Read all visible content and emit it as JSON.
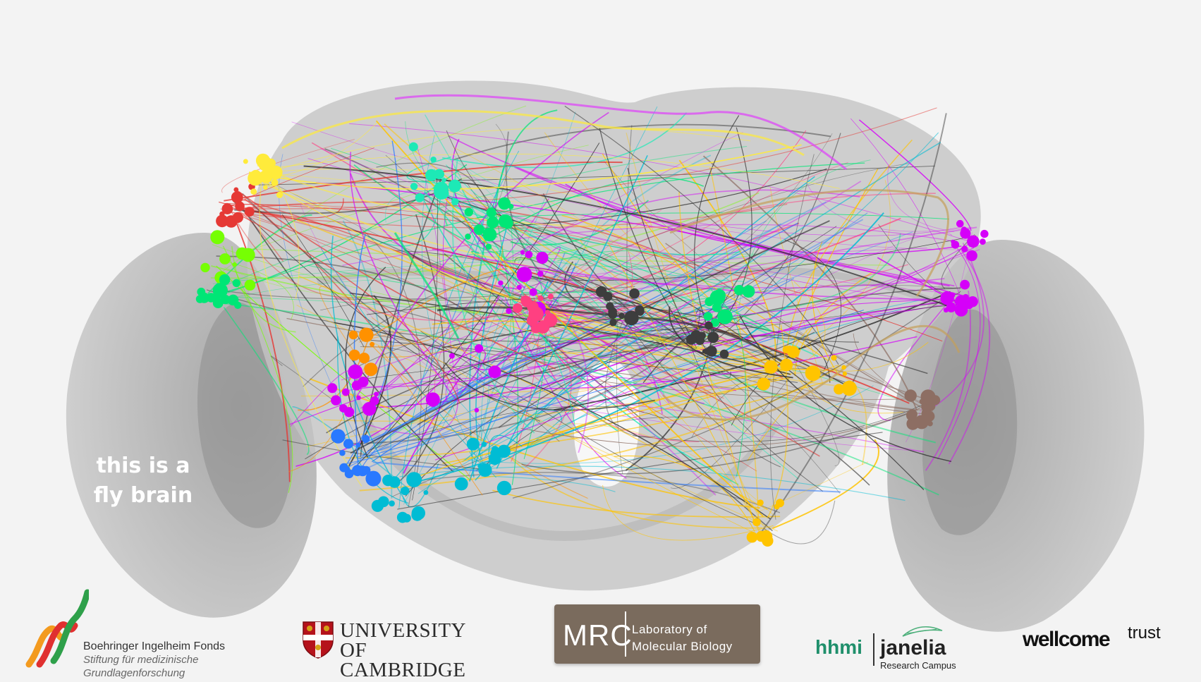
{
  "caption": {
    "line1": "this is a",
    "line2": "fly brain"
  },
  "logos": {
    "bif": {
      "line1": "Boehringer Ingelheim Fonds",
      "line2": "Stiftung für medizinische",
      "line3": "Grundlagenforschung"
    },
    "cambridge": {
      "line1": "UNIVERSITY OF",
      "line2": "CAMBRIDGE"
    },
    "mrc": {
      "abbr": "MRC",
      "line1": "Laboratory of",
      "line2": "Molecular Biology"
    },
    "hhmi": {
      "word": "hhmi",
      "janelia": "janelia",
      "sub": "Research Campus"
    },
    "wellcome": {
      "main": "wellcome",
      "sup": "trust"
    }
  },
  "colors": {
    "background": "#f3f3f3",
    "brain": "#bdbdbd",
    "mrc": "#7a6b5d",
    "hhmi": "#1f8f6b"
  }
}
